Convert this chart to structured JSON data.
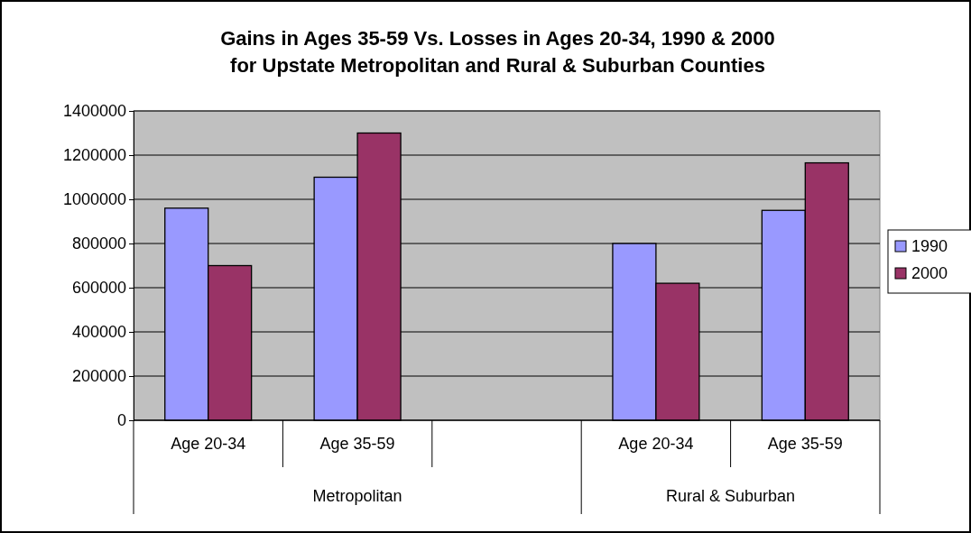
{
  "chart_data": {
    "type": "bar",
    "title": "Gains in Ages 35-59 Vs. Losses in Ages 20-34, 1990 & 2000\nfor Upstate Metropolitan and Rural & Suburban Counties",
    "categories": [
      "Age 20-34",
      "Age 35-59",
      null,
      "Age 20-34",
      "Age 35-59"
    ],
    "series": [
      {
        "name": "1990",
        "color": "#9999ff",
        "values": [
          960000,
          1100000,
          null,
          800000,
          950000
        ]
      },
      {
        "name": "2000",
        "color": "#993366",
        "values": [
          700000,
          1300000,
          null,
          620000,
          1165000
        ]
      }
    ],
    "ylim": [
      0,
      1400000
    ],
    "yticks": [
      0,
      200000,
      400000,
      600000,
      800000,
      1000000,
      1200000,
      1400000
    ],
    "grid": "y",
    "legend": "right",
    "annotations": [
      "Metropolitan",
      "Rural & Suburban"
    ]
  }
}
